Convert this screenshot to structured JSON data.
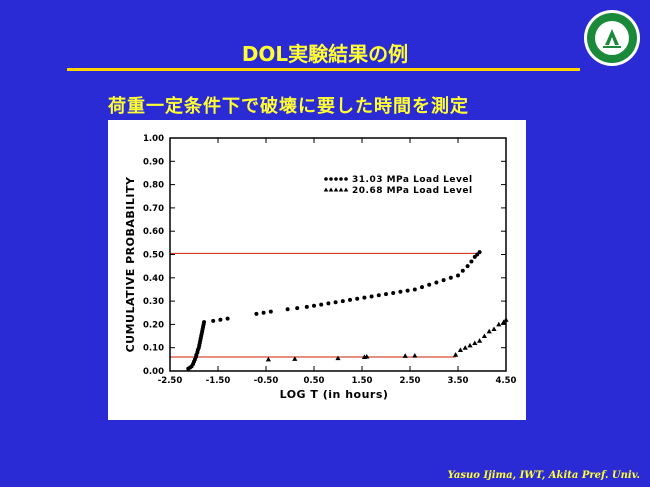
{
  "slide": {
    "title": "DOL実験結果の例",
    "subtitle": "荷重一定条件下で破壊に要した時間を測定",
    "credit": "Yasuo Ijima, IWT, Akita Pref.  Univ.",
    "logo": {
      "icon": "university-seal-icon",
      "accent": "#1a8a3a"
    }
  },
  "chart_data": {
    "type": "scatter",
    "xlabel": "LOG T (in hours)",
    "ylabel": "CUMULATIVE PROBABILITY",
    "xlim": [
      -2.5,
      4.5
    ],
    "ylim": [
      0.0,
      1.0
    ],
    "x_ticks": [
      -2.5,
      -1.5,
      -0.5,
      0.5,
      1.5,
      2.5,
      3.5,
      4.5
    ],
    "x_tick_labels": [
      "-2.50",
      "-1.50",
      "-0.50",
      "0.50",
      "1.50",
      "2.50",
      "3.50",
      "4.50"
    ],
    "y_ticks": [
      0.0,
      0.1,
      0.2,
      0.3,
      0.4,
      0.5,
      0.6,
      0.7,
      0.8,
      0.9,
      1.0
    ],
    "y_tick_labels": [
      "0.00",
      "0.10",
      "0.20",
      "0.30",
      "0.40",
      "0.50",
      "0.60",
      "0.70",
      "0.80",
      "0.90",
      "1.00"
    ],
    "legend_position": "top-right",
    "reference_lines": [
      {
        "y": 0.505,
        "x_from": -2.5,
        "x_to": 3.95,
        "color": "#cc2200"
      },
      {
        "y": 0.06,
        "x_from": -2.5,
        "x_to": 3.45,
        "color": "#cc2200"
      }
    ],
    "series": [
      {
        "name": "31.03  MPa  Load  Level",
        "marker": "dot",
        "points": [
          [
            -2.12,
            0.01
          ],
          [
            -2.08,
            0.015
          ],
          [
            -2.05,
            0.02
          ],
          [
            -2.02,
            0.03
          ],
          [
            -2.0,
            0.04
          ],
          [
            -1.98,
            0.05
          ],
          [
            -1.96,
            0.06
          ],
          [
            -1.95,
            0.07
          ],
          [
            -1.93,
            0.08
          ],
          [
            -1.92,
            0.09
          ],
          [
            -1.9,
            0.1
          ],
          [
            -1.89,
            0.11
          ],
          [
            -1.88,
            0.12
          ],
          [
            -1.87,
            0.13
          ],
          [
            -1.86,
            0.14
          ],
          [
            -1.85,
            0.15
          ],
          [
            -1.84,
            0.16
          ],
          [
            -1.83,
            0.17
          ],
          [
            -1.82,
            0.18
          ],
          [
            -1.81,
            0.19
          ],
          [
            -1.8,
            0.2
          ],
          [
            -1.79,
            0.21
          ],
          [
            -1.6,
            0.215
          ],
          [
            -1.45,
            0.22
          ],
          [
            -1.3,
            0.225
          ],
          [
            -0.7,
            0.245
          ],
          [
            -0.55,
            0.25
          ],
          [
            -0.4,
            0.255
          ],
          [
            -0.05,
            0.265
          ],
          [
            0.15,
            0.27
          ],
          [
            0.35,
            0.275
          ],
          [
            0.5,
            0.28
          ],
          [
            0.65,
            0.285
          ],
          [
            0.8,
            0.29
          ],
          [
            0.95,
            0.295
          ],
          [
            1.1,
            0.3
          ],
          [
            1.25,
            0.305
          ],
          [
            1.4,
            0.31
          ],
          [
            1.55,
            0.315
          ],
          [
            1.7,
            0.32
          ],
          [
            1.85,
            0.325
          ],
          [
            2.0,
            0.33
          ],
          [
            2.15,
            0.335
          ],
          [
            2.3,
            0.34
          ],
          [
            2.45,
            0.345
          ],
          [
            2.6,
            0.35
          ],
          [
            2.75,
            0.36
          ],
          [
            2.9,
            0.37
          ],
          [
            3.05,
            0.38
          ],
          [
            3.2,
            0.39
          ],
          [
            3.35,
            0.4
          ],
          [
            3.5,
            0.41
          ],
          [
            3.6,
            0.43
          ],
          [
            3.7,
            0.45
          ],
          [
            3.78,
            0.47
          ],
          [
            3.85,
            0.49
          ],
          [
            3.9,
            0.5
          ],
          [
            3.95,
            0.51
          ]
        ]
      },
      {
        "name": "20.68  MPa  Load  Level",
        "marker": "triangle",
        "points": [
          [
            -0.45,
            0.05
          ],
          [
            0.1,
            0.052
          ],
          [
            1.0,
            0.055
          ],
          [
            1.55,
            0.06
          ],
          [
            1.6,
            0.062
          ],
          [
            2.4,
            0.065
          ],
          [
            2.6,
            0.066
          ],
          [
            3.45,
            0.07
          ],
          [
            3.55,
            0.09
          ],
          [
            3.65,
            0.1
          ],
          [
            3.75,
            0.11
          ],
          [
            3.85,
            0.12
          ],
          [
            3.95,
            0.13
          ],
          [
            4.05,
            0.15
          ],
          [
            4.15,
            0.17
          ],
          [
            4.25,
            0.18
          ],
          [
            4.35,
            0.2
          ],
          [
            4.45,
            0.21
          ],
          [
            4.5,
            0.22
          ]
        ]
      }
    ]
  }
}
